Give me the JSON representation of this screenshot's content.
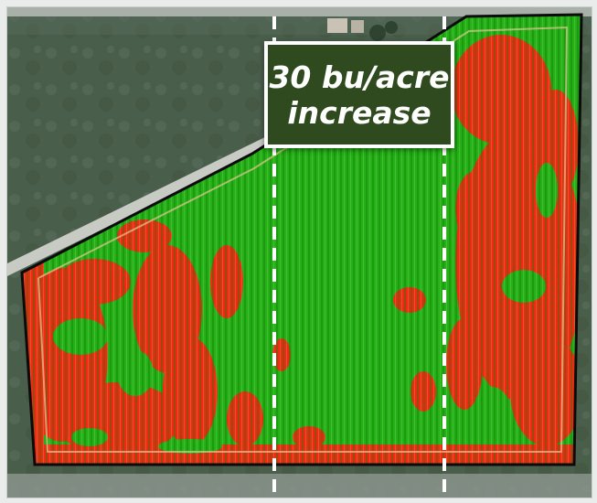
{
  "callout": {
    "text": "30 bu/acre\nincrease"
  },
  "legend_colors": {
    "high_yield": "#1faa12",
    "low_yield": "#ef2a12",
    "boundary": "#0b0b0b",
    "marker_lines": "#ffffff",
    "callout_background": "#2f4a1f"
  },
  "icons": {
    "field": "field-polygon",
    "zone": "trial-zone-dashed-lines"
  }
}
